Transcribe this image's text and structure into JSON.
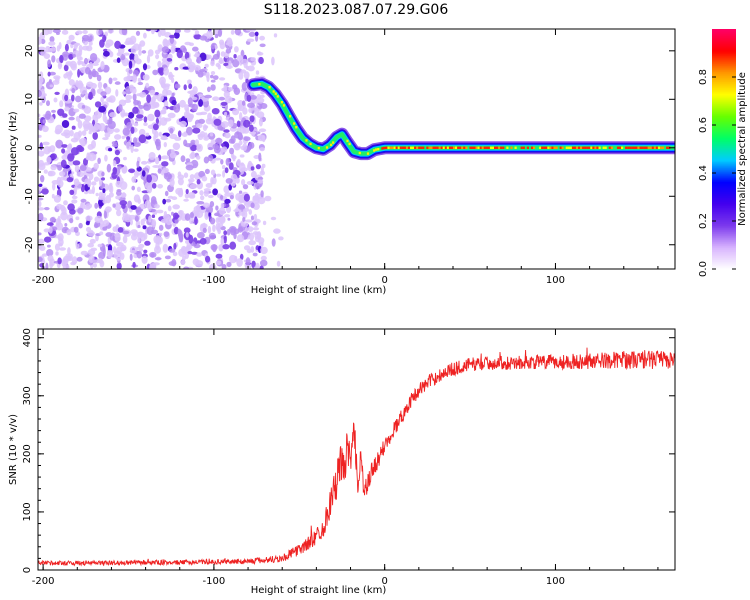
{
  "title": "S118.2023.087.07.29.G06",
  "chart_data": [
    {
      "type": "heatmap",
      "xlabel": "Height of straight line (km)",
      "ylabel": "Frequency (Hz)",
      "xlim": [
        -203,
        170
      ],
      "ylim": [
        -25,
        24.5
      ],
      "xticks": [
        -200,
        -100,
        0,
        100
      ],
      "yticks": [
        -20,
        -10,
        0,
        10,
        20
      ],
      "colorbar": {
        "label": "Normalized spectral amplitude",
        "range": [
          0,
          1
        ],
        "ticks": [
          0.0,
          0.2,
          0.4,
          0.6,
          0.8
        ],
        "colormap": [
          "#ffffff",
          "#d8b4fe",
          "#7c3aed",
          "#4400ee",
          "#0000ff",
          "#00ccff",
          "#00ff66",
          "#66ff00",
          "#ffff00",
          "#ff9900",
          "#ff0000",
          "#ff0066"
        ]
      },
      "noise_region_x": [
        -203,
        -70
      ],
      "ridge": {
        "x": [
          -77,
          -72,
          -68,
          -64,
          -60,
          -56,
          -52,
          -48,
          -44,
          -40,
          -36,
          -32,
          -28,
          -25,
          -22,
          -18,
          -14,
          -10,
          -6,
          0,
          10,
          20,
          40,
          60,
          80,
          100,
          120,
          140,
          170
        ],
        "y": [
          13,
          13.2,
          12.5,
          11,
          9,
          6.5,
          4,
          2,
          0.8,
          0,
          -0.3,
          0.6,
          2.2,
          2.8,
          1.2,
          -0.8,
          -1.2,
          -1.2,
          -0.4,
          0,
          0,
          0,
          0,
          0,
          0,
          0,
          0,
          0,
          0
        ]
      }
    },
    {
      "type": "line",
      "xlabel": "Height of straight line (km)",
      "ylabel": "SNR (10 * v/v)",
      "xlim": [
        -203,
        170
      ],
      "ylim": [
        0,
        415
      ],
      "xticks": [
        -200,
        -100,
        0,
        100
      ],
      "yticks": [
        0,
        100,
        200,
        300,
        400
      ],
      "grid": false,
      "series": [
        {
          "color": "#ee2222",
          "x": [
            -203,
            -180,
            -160,
            -140,
            -120,
            -100,
            -80,
            -70,
            -60,
            -55,
            -50,
            -45,
            -40,
            -35,
            -32,
            -30,
            -28,
            -26,
            -24,
            -22,
            -20,
            -18,
            -16,
            -14,
            -12,
            -10,
            -8,
            -6,
            -4,
            -2,
            0,
            5,
            10,
            15,
            20,
            25,
            30,
            35,
            40,
            45,
            50,
            60,
            70,
            80,
            90,
            100,
            110,
            120,
            130,
            140,
            150,
            160,
            170
          ],
          "y": [
            12,
            12,
            12,
            13,
            13,
            14,
            15,
            17,
            20,
            28,
            35,
            45,
            58,
            80,
            115,
            135,
            150,
            190,
            170,
            210,
            180,
            240,
            150,
            200,
            130,
            145,
            165,
            180,
            185,
            200,
            215,
            240,
            265,
            290,
            310,
            322,
            332,
            340,
            346,
            350,
            354,
            356,
            357,
            357,
            358,
            358,
            359,
            360,
            361,
            362,
            362,
            362,
            362
          ],
          "noise_amplitude": [
            4,
            4,
            4,
            4,
            4,
            4,
            5,
            6,
            7,
            8,
            10,
            12,
            15,
            20,
            25,
            28,
            30,
            35,
            30,
            35,
            30,
            40,
            25,
            30,
            22,
            18,
            18,
            16,
            15,
            15,
            14,
            14,
            13,
            12,
            12,
            12,
            12,
            12,
            12,
            12,
            12,
            12,
            12,
            12,
            12,
            13,
            13,
            14,
            14,
            15,
            16,
            16,
            16
          ]
        }
      ]
    }
  ]
}
